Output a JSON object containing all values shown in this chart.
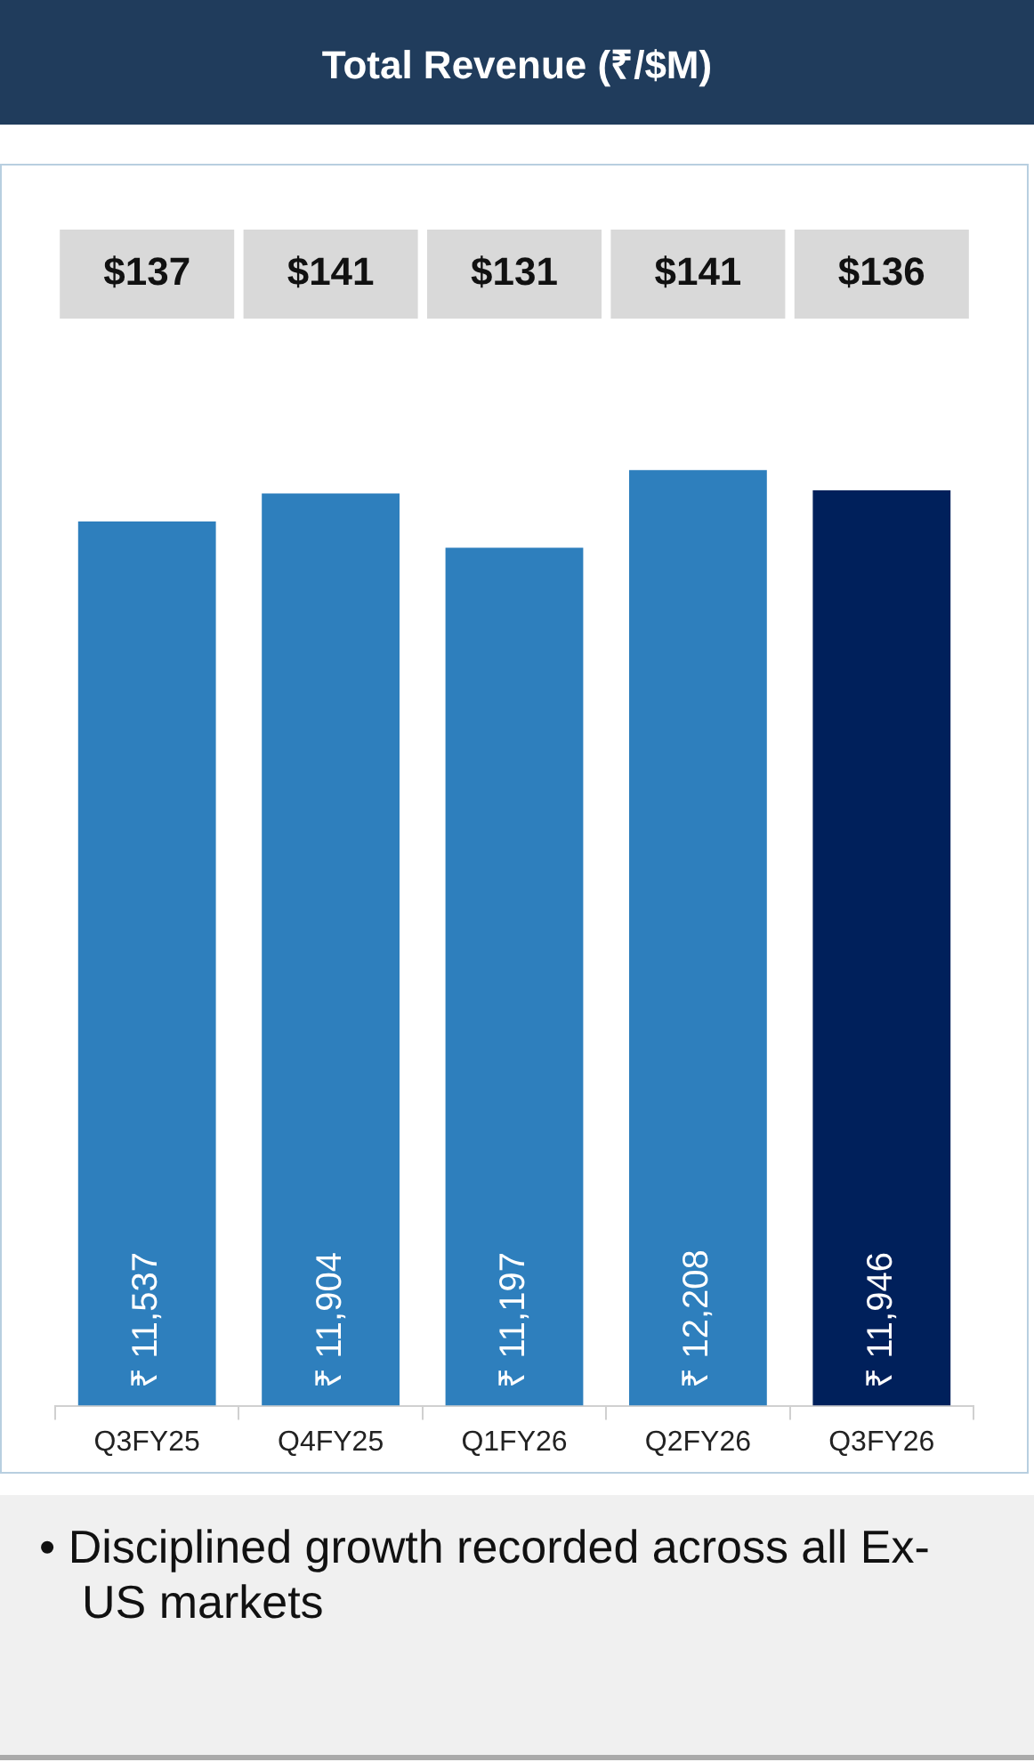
{
  "chart_data": {
    "type": "bar",
    "title": "Total Revenue (₹/$M)",
    "categories": [
      "Q3FY25",
      "Q4FY25",
      "Q1FY26",
      "Q2FY26",
      "Q3FY26"
    ],
    "values": [
      11537,
      11904,
      11197,
      12208,
      11946
    ],
    "colors": [
      "#2e7fbd",
      "#2e7fbd",
      "#2e7fbd",
      "#2e7fbd",
      "#00205b"
    ],
    "value_labels": [
      "₹ 11,537",
      "₹ 11,904",
      "₹ 11,197",
      "₹ 12,208",
      "₹ 11,946"
    ],
    "tick_labels": "x",
    "grid": false,
    "legend": false,
    "annotations": [
      "$137",
      "$141",
      "$131",
      "$141",
      "$136",
      "• Disciplined growth recorded across all Ex-US markets"
    ]
  }
}
